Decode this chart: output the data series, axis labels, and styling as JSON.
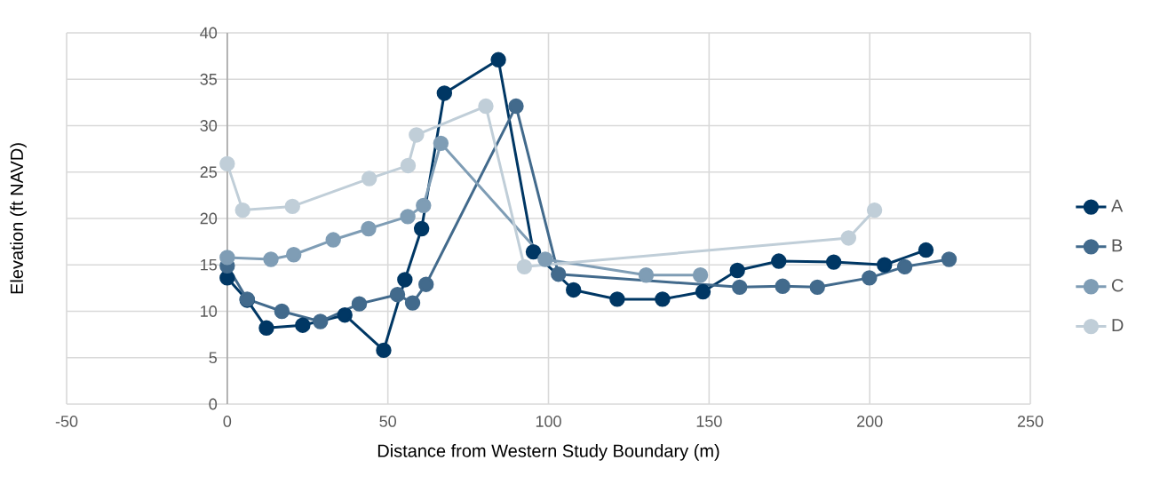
{
  "chart_data": {
    "type": "line",
    "xlabel": "Distance from Western Study Boundary (m)",
    "ylabel": "Elevation (ft NAVD)",
    "xlim": [
      -50,
      250
    ],
    "ylim": [
      0,
      40
    ],
    "xticks": [
      -50,
      0,
      50,
      100,
      150,
      200,
      250
    ],
    "yticks": [
      0,
      5,
      10,
      15,
      20,
      25,
      30,
      35,
      40
    ],
    "grid": true,
    "legend": "right",
    "marker": "circle",
    "line_style": "solid",
    "series": [
      {
        "name": "A",
        "color": "#003764",
        "x": [
          0,
          6.2,
          12.2,
          23.5,
          36.6,
          48.7,
          55.3,
          60.5,
          67.6,
          84.4,
          95.3,
          107.8,
          121.4,
          135.5,
          148.1,
          158.8,
          171.7,
          188.8,
          204.6,
          217.5
        ],
        "values": [
          13.6,
          11.2,
          8.2,
          8.5,
          9.6,
          5.8,
          13.4,
          18.9,
          33.5,
          37.1,
          16.4,
          12.3,
          11.3,
          11.3,
          12.1,
          14.4,
          15.4,
          15.3,
          15.0,
          16.6
        ]
      },
      {
        "name": "B",
        "color": "#426a8c",
        "x": [
          0,
          6.2,
          17,
          29,
          41.1,
          53,
          57.7,
          61.9,
          89.9,
          103.1,
          159.5,
          172.9,
          183.7,
          199.9,
          210.9,
          224.7
        ],
        "values": [
          14.9,
          11.3,
          10.0,
          8.9,
          10.8,
          11.8,
          10.9,
          12.9,
          32.1,
          14.0,
          12.6,
          12.7,
          12.6,
          13.6,
          14.8,
          15.6
        ]
      },
      {
        "name": "C",
        "color": "#7f9db5",
        "x": [
          0,
          13.6,
          20.7,
          33,
          44,
          56.2,
          61.1,
          66.5,
          99,
          130.4,
          147.3
        ],
        "values": [
          15.8,
          15.6,
          16.1,
          17.7,
          18.9,
          20.2,
          21.4,
          28.1,
          15.6,
          13.9,
          13.9
        ]
      },
      {
        "name": "D",
        "color": "#c0ced8",
        "x": [
          0,
          4.8,
          20.3,
          44.2,
          56.3,
          58.9,
          80.5,
          92.5,
          193.4,
          201.5
        ],
        "values": [
          25.9,
          20.9,
          21.3,
          24.3,
          25.7,
          29.0,
          32.1,
          14.8,
          17.9,
          20.9
        ]
      }
    ]
  }
}
